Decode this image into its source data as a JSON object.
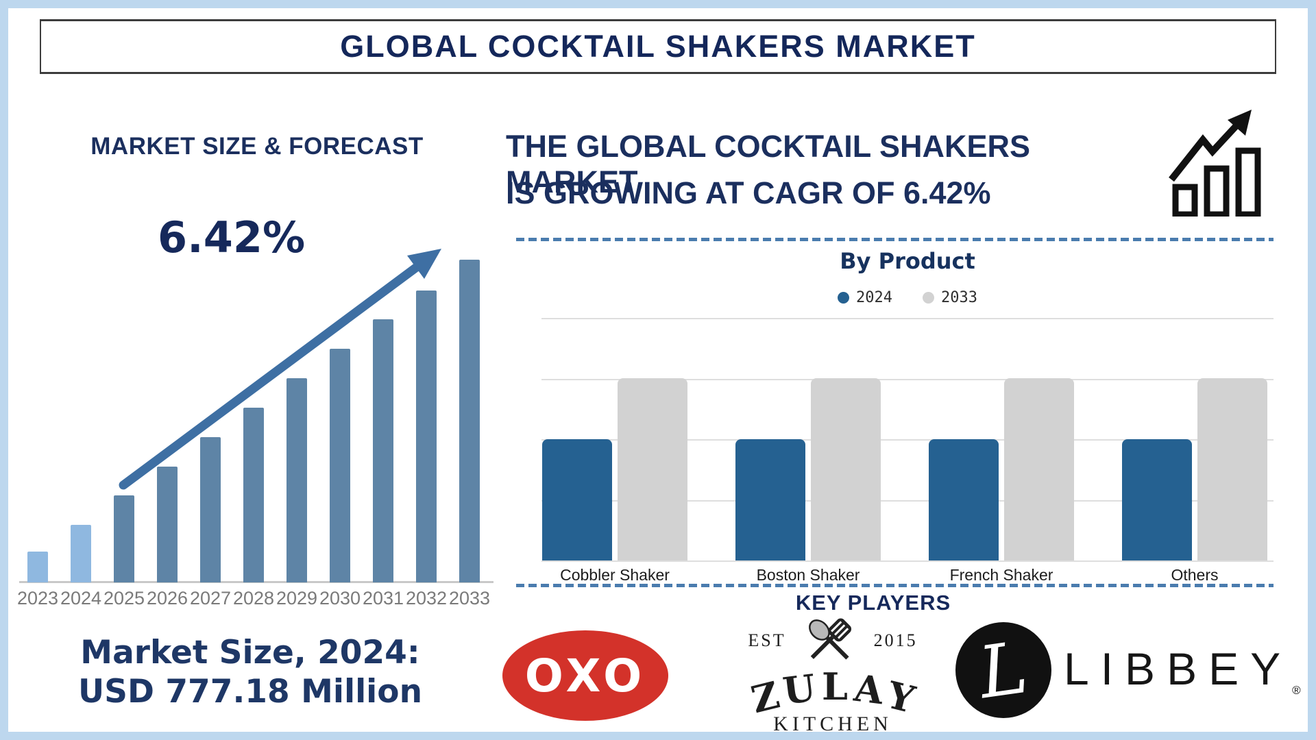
{
  "page": {
    "title": "GLOBAL COCKTAIL SHAKERS MARKET"
  },
  "colors": {
    "navy": "#1b2f5e",
    "frame_blue": "#bdd7ee",
    "light_blue_bar": "#8fb8e0",
    "steel_blue_bar": "#5e84a6",
    "arrow_blue": "#3e6fa3",
    "product_blue": "#256191",
    "product_gray": "#d2d2d2",
    "dashed_line_blue": "#4a7cae",
    "gridline_gray": "#dedede",
    "year_label_gray": "#7a7a7a",
    "oxo_red": "#d3322a",
    "icon_black": "#111111"
  },
  "left_panel": {
    "heading": "MARKET SIZE & FORECAST",
    "cagr_label": "6.42%",
    "market_size_line1": "Market Size, 2024:",
    "market_size_line2": "USD 777.18 Million"
  },
  "right_panel": {
    "headline_line1": "THE GLOBAL COCKTAIL SHAKERS MARKET",
    "headline_line2": "IS GROWING AT CAGR OF 6.42%",
    "by_product_title": "By Product",
    "legend": [
      {
        "label": "2024",
        "color": "#256191"
      },
      {
        "label": "2033",
        "color": "#d2d2d2"
      }
    ]
  },
  "chart_data": [
    {
      "type": "bar",
      "title": "MARKET SIZE & FORECAST",
      "categories": [
        "2023",
        "2024",
        "2025",
        "2026",
        "2027",
        "2028",
        "2029",
        "2030",
        "2031",
        "2032",
        "2033"
      ],
      "values": [
        9.6,
        17.8,
        27.0,
        35.9,
        45.0,
        54.1,
        63.3,
        72.4,
        81.5,
        90.4,
        100.0
      ],
      "unit": "relative bar height, % of 2033 bar (no value axis shown)",
      "annotation": "6.42% CAGR trend arrow rising left-to-right",
      "highlight": "2023-2024 bars light blue (historical); 2025-2033 bars steel blue (forecast)",
      "xlabel": "",
      "ylabel": "",
      "grid": false,
      "legend_position": "none"
    },
    {
      "type": "bar",
      "title": "By Product",
      "categories": [
        "Cobbler Shaker",
        "Boston Shaker",
        "French Shaker",
        "Others"
      ],
      "series": [
        {
          "name": "2024",
          "color": "#256191",
          "values": [
            2,
            2,
            2,
            2
          ]
        },
        {
          "name": "2033",
          "color": "#d2d2d2",
          "values": [
            3,
            3,
            3,
            3
          ]
        }
      ],
      "unit": "relative gridline units (no value axis shown)",
      "ylim": [
        0,
        4
      ],
      "grid": true,
      "legend_position": "top-center"
    }
  ],
  "key_players": {
    "heading": "KEY PLAYERS",
    "logos": [
      {
        "name": "OXO",
        "text": "OXO"
      },
      {
        "name": "Zulay Kitchen",
        "est": "EST",
        "year": "2015",
        "word1": "ZULAY",
        "word2": "KITCHEN"
      },
      {
        "name": "Libbey",
        "monogram": "L",
        "text": "LIBBEY",
        "registered": "®"
      }
    ]
  }
}
